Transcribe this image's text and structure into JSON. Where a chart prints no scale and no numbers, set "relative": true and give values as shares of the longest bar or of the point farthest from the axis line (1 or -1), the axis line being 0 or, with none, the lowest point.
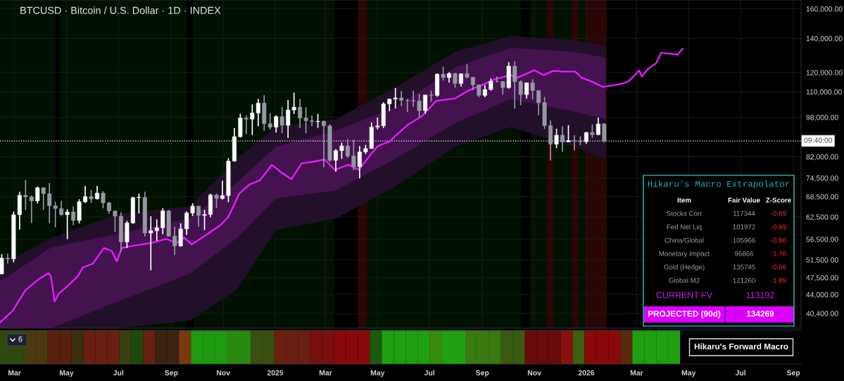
{
  "chart_data": [
    {
      "type": "candlestick",
      "title": "BTCUSD · Bitcoin / U.S. Dollar · 1D · INDEX",
      "x": [
        "2024-02-15",
        "2024-02-22",
        "2024-02-29",
        "2024-03-07",
        "2024-03-14",
        "2024-03-21",
        "2024-03-28",
        "2024-04-04",
        "2024-04-11",
        "2024-04-18",
        "2024-04-25",
        "2024-05-02",
        "2024-05-09",
        "2024-05-16",
        "2024-05-23",
        "2024-05-30",
        "2024-06-06",
        "2024-06-13",
        "2024-06-20",
        "2024-06-27",
        "2024-07-04",
        "2024-07-11",
        "2024-07-18",
        "2024-07-25",
        "2024-08-01",
        "2024-08-08",
        "2024-08-15",
        "2024-08-22",
        "2024-08-29",
        "2024-09-05",
        "2024-09-12",
        "2024-09-19",
        "2024-09-26",
        "2024-10-03",
        "2024-10-10",
        "2024-10-17",
        "2024-10-24",
        "2024-10-31",
        "2024-11-07",
        "2024-11-14",
        "2024-11-21",
        "2024-11-28",
        "2024-12-05",
        "2024-12-12",
        "2024-12-19",
        "2024-12-26",
        "2025-01-02",
        "2025-01-09",
        "2025-01-16",
        "2025-01-23",
        "2025-01-30",
        "2025-02-06",
        "2025-02-13",
        "2025-02-20",
        "2025-02-27",
        "2025-03-06",
        "2025-03-13",
        "2025-03-20",
        "2025-03-27",
        "2025-04-03",
        "2025-04-10",
        "2025-04-17",
        "2025-04-24",
        "2025-05-01",
        "2025-05-08",
        "2025-05-15",
        "2025-05-22",
        "2025-05-29",
        "2025-06-05",
        "2025-06-12",
        "2025-06-19",
        "2025-06-26",
        "2025-07-03",
        "2025-07-10",
        "2025-07-17",
        "2025-07-24",
        "2025-07-31",
        "2025-08-07",
        "2025-08-14",
        "2025-08-21",
        "2025-08-28",
        "2025-09-04",
        "2025-09-11",
        "2025-09-18",
        "2025-09-25",
        "2025-10-02",
        "2025-10-09",
        "2025-10-16",
        "2025-10-23",
        "2025-10-30",
        "2025-11-06",
        "2025-11-13",
        "2025-11-20",
        "2025-11-27",
        "2025-12-04",
        "2025-12-11",
        "2025-12-18",
        "2025-12-25",
        "2026-01-01",
        "2026-01-08",
        "2026-01-15",
        "2026-01-22"
      ],
      "ohlc": [
        [
          48300,
          52800,
          48200,
          51900
        ],
        [
          51900,
          52900,
          50600,
          51700
        ],
        [
          51700,
          64000,
          50900,
          63100
        ],
        [
          63100,
          70000,
          59000,
          68900
        ],
        [
          68900,
          73800,
          64500,
          68400
        ],
        [
          68400,
          68900,
          60800,
          67200
        ],
        [
          67200,
          71700,
          66400,
          71300
        ],
        [
          71300,
          71300,
          64500,
          69400
        ],
        [
          69400,
          72800,
          60700,
          65700
        ],
        [
          65700,
          66900,
          59600,
          64900
        ],
        [
          64900,
          67200,
          62800,
          63100
        ],
        [
          63100,
          64700,
          56500,
          63900
        ],
        [
          63900,
          65500,
          60200,
          61500
        ],
        [
          61500,
          67700,
          60700,
          66900
        ],
        [
          66900,
          71900,
          66600,
          68500
        ],
        [
          68500,
          70600,
          66600,
          67800
        ],
        [
          67800,
          71900,
          67600,
          69600
        ],
        [
          69600,
          70200,
          65000,
          66600
        ],
        [
          66600,
          66900,
          63400,
          64200
        ],
        [
          64200,
          64200,
          58400,
          62700
        ],
        [
          62700,
          63800,
          53500,
          55800
        ],
        [
          55800,
          61400,
          54300,
          60800
        ],
        [
          60800,
          68400,
          60600,
          68200
        ],
        [
          68200,
          69400,
          63500,
          68300
        ],
        [
          68300,
          70000,
          57200,
          58100
        ],
        [
          58100,
          62700,
          49100,
          58700
        ],
        [
          58700,
          61800,
          56100,
          59500
        ],
        [
          59500,
          65000,
          57800,
          64200
        ],
        [
          64200,
          64500,
          57200,
          57300
        ],
        [
          57300,
          59800,
          52600,
          54800
        ],
        [
          54800,
          60700,
          54600,
          59200
        ],
        [
          59200,
          64100,
          57600,
          63600
        ],
        [
          63600,
          66500,
          62700,
          65600
        ],
        [
          65600,
          65600,
          59800,
          62900
        ],
        [
          62900,
          64500,
          58900,
          63200
        ],
        [
          63200,
          69400,
          62400,
          69000
        ],
        [
          69000,
          69500,
          65100,
          67900
        ],
        [
          67900,
          73600,
          67600,
          68800
        ],
        [
          68800,
          81500,
          66800,
          80400
        ],
        [
          80400,
          93400,
          80200,
          89800
        ],
        [
          89800,
          99600,
          89400,
          97700
        ],
        [
          97700,
          98900,
          90800,
          97200
        ],
        [
          97200,
          103900,
          90500,
          99900
        ],
        [
          99900,
          106500,
          94100,
          104500
        ],
        [
          104500,
          108300,
          92200,
          95200
        ],
        [
          95200,
          99900,
          92700,
          93700
        ],
        [
          93700,
          98900,
          91500,
          98300
        ],
        [
          98300,
          102700,
          91200,
          94500
        ],
        [
          94500,
          106000,
          89300,
          101300
        ],
        [
          101300,
          109600,
          99500,
          102600
        ],
        [
          102600,
          106500,
          93400,
          97700
        ],
        [
          97700,
          102500,
          91200,
          96500
        ],
        [
          96500,
          98800,
          94100,
          96100
        ],
        [
          96100,
          99500,
          93400,
          96300
        ],
        [
          96300,
          96500,
          78200,
          94300
        ],
        [
          94300,
          95000,
          80100,
          80700
        ],
        [
          80700,
          84900,
          76600,
          84300
        ],
        [
          84300,
          87400,
          81200,
          86100
        ],
        [
          86100,
          88800,
          81600,
          82300
        ],
        [
          82300,
          88500,
          77100,
          78400
        ],
        [
          78400,
          86100,
          74400,
          83800
        ],
        [
          83800,
          86500,
          83000,
          85100
        ],
        [
          85100,
          95800,
          85100,
          93800
        ],
        [
          93800,
          97900,
          92800,
          94300
        ],
        [
          94300,
          104900,
          93400,
          104100
        ],
        [
          104100,
          106600,
          100700,
          106400
        ],
        [
          106400,
          111900,
          102000,
          107000
        ],
        [
          107000,
          110400,
          103100,
          105800
        ],
        [
          105800,
          106600,
          100400,
          105700
        ],
        [
          105700,
          110500,
          102700,
          105500
        ],
        [
          105500,
          108900,
          98200,
          101000
        ],
        [
          101000,
          108500,
          99600,
          108400
        ],
        [
          108400,
          110600,
          105100,
          108200
        ],
        [
          108200,
          119500,
          107500,
          119100
        ],
        [
          119100,
          123200,
          115700,
          117300
        ],
        [
          117300,
          120200,
          114700,
          119400
        ],
        [
          119400,
          119800,
          112000,
          114200
        ],
        [
          114200,
          119300,
          112600,
          119300
        ],
        [
          119300,
          124500,
          116800,
          117400
        ],
        [
          117400,
          117600,
          110700,
          113500
        ],
        [
          113500,
          113600,
          107300,
          108200
        ],
        [
          108200,
          113400,
          107300,
          111100
        ],
        [
          111100,
          116800,
          110600,
          115300
        ],
        [
          115300,
          117900,
          114700,
          115200
        ],
        [
          115200,
          115400,
          108600,
          112100
        ],
        [
          112100,
          125700,
          111500,
          123500
        ],
        [
          123500,
          126200,
          102000,
          115100
        ],
        [
          115100,
          115900,
          103500,
          108600
        ],
        [
          108600,
          114600,
          106600,
          114500
        ],
        [
          114500,
          116400,
          106300,
          110600
        ],
        [
          110600,
          110600,
          98900,
          104700
        ],
        [
          104700,
          107500,
          93000,
          94400
        ],
        [
          94400,
          96600,
          80600,
          86800
        ],
        [
          86800,
          93100,
          85300,
          90400
        ],
        [
          90400,
          94100,
          83900,
          87700
        ],
        [
          87700,
          94600,
          87600,
          88200
        ],
        [
          88200,
          90400,
          84400,
          88100
        ],
        [
          88100,
          89900,
          86500,
          87800
        ],
        [
          87800,
          91800,
          86900,
          91500
        ],
        [
          91500,
          94800,
          89300,
          90600
        ],
        [
          90600,
          97900,
          90500,
          95100
        ],
        [
          95100,
          95500,
          87300,
          88100
        ]
      ],
      "colors": [
        "#ffffff",
        "#9598a1",
        "#ffffff",
        "#ffffff",
        "#9598a1",
        "#9598a1",
        "#ffffff",
        "#9598a1",
        "#9598a1",
        "#9598a1",
        "#9598a1",
        "#ffffff",
        "#9598a1",
        "#ffffff",
        "#ffffff",
        "#9598a1",
        "#ffffff",
        "#9598a1",
        "#9598a1",
        "#9598a1",
        "#9598a1",
        "#ffffff",
        "#ffffff",
        "#ffffff",
        "#9598a1",
        "#ffffff",
        "#ffffff",
        "#ffffff",
        "#9598a1",
        "#9598a1",
        "#ffffff",
        "#ffffff",
        "#ffffff",
        "#9598a1",
        "#ffffff",
        "#ffffff",
        "#9598a1",
        "#ffffff",
        "#ffffff",
        "#ffffff",
        "#ffffff",
        "#9598a1",
        "#ffffff",
        "#ffffff",
        "#9598a1",
        "#9598a1",
        "#ffffff",
        "#9598a1",
        "#ffffff",
        "#ffffff",
        "#9598a1",
        "#9598a1",
        "#9598a1",
        "#ffffff",
        "#9598a1",
        "#9598a1",
        "#ffffff",
        "#ffffff",
        "#9598a1",
        "#9598a1",
        "#ffffff",
        "#ffffff",
        "#ffffff",
        "#ffffff",
        "#ffffff",
        "#ffffff",
        "#ffffff",
        "#9598a1",
        "#9598a1",
        "#9598a1",
        "#9598a1",
        "#ffffff",
        "#9598a1",
        "#ffffff",
        "#9598a1",
        "#ffffff",
        "#9598a1",
        "#ffffff",
        "#9598a1",
        "#9598a1",
        "#9598a1",
        "#ffffff",
        "#ffffff",
        "#9598a1",
        "#9598a1",
        "#ffffff",
        "#9598a1",
        "#9598a1",
        "#ffffff",
        "#9598a1",
        "#9598a1",
        "#9598a1",
        "#9598a1",
        "#ffffff",
        "#9598a1",
        "#ffffff",
        "#9598a1",
        "#9598a1",
        "#ffffff",
        "#9598a1",
        "#ffffff",
        "#9598a1"
      ],
      "series": [
        {
          "type": "line",
          "color": "#22102a",
          "x": [
            "2024-02-13",
            "2024-04-13",
            "2024-07-01",
            "2024-09-23",
            "2024-11-17",
            "2025-01-02",
            "2025-03-13",
            "2025-05-22",
            "2025-07-31",
            "2025-10-04",
            "2025-12-17",
            "2026-01-24"
          ],
          "values": [
            null,
            null,
            null,
            null,
            null,
            null,
            null,
            null,
            null,
            null,
            null,
            null
          ],
          "lower": [
            37800,
            37800,
            37800,
            39100,
            45000,
            58900,
            62100,
            71700,
            85800,
            93800,
            85800,
            81300
          ],
          "upper": [
            50200,
            56800,
            63300,
            65600,
            81300,
            93800,
            97200,
            112200,
            131800,
            141500,
            139000,
            135300
          ]
        },
        {
          "type": "line",
          "color": "#44124f",
          "x": [
            "2024-02-13",
            "2024-04-13",
            "2024-07-01",
            "2024-09-23",
            "2024-11-17",
            "2025-01-02",
            "2025-03-13",
            "2025-05-22",
            "2025-07-31",
            "2025-10-04",
            "2025-12-17",
            "2026-01-24"
          ],
          "values": [
            null,
            null,
            null,
            null,
            null,
            null,
            null,
            null,
            null,
            null,
            null,
            null
          ],
          "lower": [
            37800,
            37800,
            42700,
            48400,
            56800,
            68000,
            70400,
            81300,
            95500,
            106300,
            100700,
            97200
          ],
          "upper": [
            46700,
            54400,
            57900,
            62100,
            73000,
            85800,
            92200,
            102600,
            122700,
            134100,
            131800,
            128300
          ]
        },
        {
          "type": "line",
          "color": "#e51cff",
          "x": [
            "2024-02-13",
            "2024-02-28",
            "2024-03-14",
            "2024-03-29",
            "2024-04-10",
            "2024-04-13",
            "2024-04-17",
            "2024-04-22",
            "2024-05-02",
            "2024-05-14",
            "2024-05-20",
            "2024-06-01",
            "2024-06-14",
            "2024-06-23",
            "2024-06-29",
            "2024-07-05",
            "2024-07-20",
            "2024-08-08",
            "2024-08-26",
            "2024-09-07",
            "2024-09-16",
            "2024-09-25",
            "2024-10-14",
            "2024-10-29",
            "2024-11-07",
            "2024-11-20",
            "2024-12-02",
            "2024-12-14",
            "2024-12-28",
            "2025-01-08",
            "2025-01-20",
            "2025-02-01",
            "2025-02-13",
            "2025-02-28",
            "2025-03-12",
            "2025-03-28",
            "2025-04-09",
            "2025-04-21",
            "2025-05-01",
            "2025-05-16",
            "2025-05-20",
            "2025-06-06",
            "2025-06-22",
            "2025-07-09",
            "2025-07-31",
            "2025-08-16",
            "2025-09-02",
            "2025-09-18",
            "2025-10-05",
            "2025-10-10",
            "2025-11-01",
            "2025-11-12",
            "2025-11-23",
            "2025-12-04",
            "2025-12-19",
            "2025-12-26",
            "2026-01-09",
            "2026-01-20",
            "2026-01-25",
            "2026-02-08",
            "2026-02-19",
            "2026-02-27",
            "2026-03-04",
            "2026-03-07",
            "2026-03-14",
            "2026-03-24",
            "2026-03-30",
            "2026-04-10",
            "2026-04-18",
            "2026-04-24"
          ],
          "values": [
            38800,
            40900,
            44900,
            47100,
            48500,
            47700,
            42600,
            44200,
            45700,
            47700,
            49700,
            50600,
            54300,
            53600,
            51100,
            54300,
            54900,
            55500,
            56600,
            55500,
            56900,
            55200,
            57900,
            60300,
            62500,
            69500,
            72400,
            73700,
            79100,
            76400,
            74100,
            79600,
            80100,
            81000,
            77300,
            79100,
            77300,
            82000,
            86000,
            88000,
            89500,
            94900,
            98500,
            105600,
            106700,
            110700,
            113700,
            116800,
            118600,
            116800,
            121200,
            118600,
            120900,
            120500,
            120500,
            117400,
            114900,
            112500,
            112700,
            113700,
            115100,
            118600,
            121200,
            117800,
            121800,
            125100,
            131200,
            130600,
            130000,
            133600
          ]
        }
      ],
      "log": true,
      "xlim": [
        "2024-02-13",
        "2026-09-10"
      ],
      "xticks": [
        {
          "value": "2024-03-01",
          "label": null
        },
        {
          "value": "2024-05-01",
          "label": null
        },
        {
          "value": "2024-07-01",
          "label": null
        },
        {
          "value": "2024-09-01",
          "label": null
        },
        {
          "value": "2024-11-01",
          "label": null
        },
        {
          "value": "2025-01-01",
          "label": null
        },
        {
          "value": "2025-03-01",
          "label": null
        },
        {
          "value": "2025-05-01",
          "label": null
        },
        {
          "value": "2025-07-01",
          "label": null
        },
        {
          "value": "2025-09-01",
          "label": null
        },
        {
          "value": "2025-11-01",
          "label": null
        },
        {
          "value": "2026-01-01",
          "label": null
        },
        {
          "value": "2026-03-01",
          "label": null
        },
        {
          "value": "2026-05-01",
          "label": null
        },
        {
          "value": "2026-07-01",
          "label": null
        },
        {
          "value": "2026-09-01",
          "label": null
        }
      ],
      "ylim": [
        37800,
        166500
      ],
      "yticks": [
        {
          "value": 160000,
          "label": "160,000.00"
        },
        {
          "value": 140000,
          "label": "140,000.00"
        },
        {
          "value": 120000,
          "label": "120,000.00"
        },
        {
          "value": 110000,
          "label": "110,000.00"
        },
        {
          "value": 98000,
          "label": "98,000.00"
        },
        {
          "value": 82000,
          "label": "82,000.00"
        },
        {
          "value": 74500,
          "label": "74,500.00"
        },
        {
          "value": 68500,
          "label": "68,500.00"
        },
        {
          "value": 62500,
          "label": "62,500.00"
        },
        {
          "value": 56500,
          "label": "56,500.00"
        },
        {
          "value": 51500,
          "label": "51,500.00"
        },
        {
          "value": 47500,
          "label": "47,500.00"
        },
        {
          "value": 44000,
          "label": "44,000.00"
        },
        {
          "value": 40400,
          "label": "40,400.00"
        }
      ],
      "tick_labels": "y",
      "grid": true,
      "bands": [
        {
          "axis": "x",
          "from": "2024-02-13",
          "to": "2026-01-25",
          "color": "#031103"
        },
        {
          "axis": "x",
          "from": "2024-04-18",
          "to": "2024-04-24",
          "color": "#000000"
        },
        {
          "axis": "x",
          "from": "2024-09-19",
          "to": "2024-09-27",
          "color": "#000000"
        },
        {
          "axis": "x",
          "from": "2025-03-11",
          "to": "2025-04-08",
          "color": "#000000"
        },
        {
          "axis": "x",
          "from": "2025-04-08",
          "to": "2025-04-19",
          "color": "#2a0606"
        },
        {
          "axis": "x",
          "from": "2025-10-16",
          "to": "2025-10-27",
          "color": "#000000"
        },
        {
          "axis": "x",
          "from": "2025-11-16",
          "to": "2025-11-24",
          "color": "#2a0606"
        },
        {
          "axis": "x",
          "from": "2025-12-15",
          "to": "2025-12-23",
          "color": "#2a0606"
        },
        {
          "axis": "x",
          "from": "2025-12-31",
          "to": "2026-01-25",
          "color": "#2a0606"
        }
      ],
      "ref_lines": [
        {
          "axis": "y",
          "value": 88100,
          "line_style": "dotted",
          "color": "#ffffff"
        }
      ],
      "annotations": [
        "09:40:00"
      ]
    },
    {
      "type": "bar",
      "title": "Hikaru's Forward Macro",
      "relative": true,
      "x": [
        "2024-02-20",
        "2024-03-05",
        "2024-03-19",
        "2024-04-02",
        "2024-04-16",
        "2024-04-30",
        "2024-05-14",
        "2024-05-28",
        "2024-06-11",
        "2024-06-25",
        "2024-07-09",
        "2024-07-23",
        "2024-08-06",
        "2024-08-20",
        "2024-09-03",
        "2024-09-17",
        "2024-10-01",
        "2024-10-15",
        "2024-10-29",
        "2024-11-12",
        "2024-11-26",
        "2024-12-10",
        "2024-12-24",
        "2025-01-07",
        "2025-01-21",
        "2025-02-04",
        "2025-02-18",
        "2025-03-04",
        "2025-03-18",
        "2025-04-01",
        "2025-04-15",
        "2025-04-29",
        "2025-05-13",
        "2025-05-27",
        "2025-06-10",
        "2025-06-24",
        "2025-07-08",
        "2025-07-22",
        "2025-08-05",
        "2025-08-19",
        "2025-09-02",
        "2025-09-16",
        "2025-09-30",
        "2025-10-14",
        "2025-10-28",
        "2025-11-11",
        "2025-11-25",
        "2025-12-09",
        "2025-12-23",
        "2026-01-06",
        "2026-01-20",
        "2026-02-03",
        "2026-02-17",
        "2026-03-03",
        "2026-03-17",
        "2026-03-31",
        "2026-04-14"
      ],
      "values": [
        1,
        1,
        1,
        1,
        1,
        1,
        1,
        1,
        1,
        1,
        1,
        1,
        1,
        1,
        1,
        1,
        1,
        1,
        1,
        1,
        1,
        1,
        1,
        1,
        1,
        1,
        1,
        1,
        1,
        1,
        1,
        1,
        1,
        1,
        1,
        1,
        1,
        1,
        1,
        1,
        1,
        1,
        1,
        1,
        1,
        1,
        1,
        1,
        1,
        1,
        1,
        1,
        1,
        1,
        1,
        1,
        1
      ],
      "colors": [
        "#2e4a10",
        "#2e4a10",
        "#4a3a10",
        "#4a3a10",
        "#5a2010",
        "#5a2010",
        "#3a3010",
        "#6a2010",
        "#6a2010",
        "#6a2010",
        "#3a4010",
        "#1f4a0e",
        "#6a2010",
        "#3a2410",
        "#3a2410",
        "#7a3a10",
        "#1f9a10",
        "#1f9a10",
        "#1f9a10",
        "#2a8a10",
        "#2a8a10",
        "#3a5010",
        "#3a5010",
        "#6a2010",
        "#6a2010",
        "#6a2010",
        "#7a1010",
        "#7a1010",
        "#8a0a0a",
        "#8a0a0a",
        "#8a0a0a",
        "#1a5a0c",
        "#20a010",
        "#20a010",
        "#20a010",
        "#20a010",
        "#3a8a10",
        "#20a010",
        "#20a010",
        "#3a7a10",
        "#3a7a10",
        "#3a7a10",
        "#3a5a10",
        "#3a5a10",
        "#6a0a0a",
        "#6a0a0a",
        "#6a0a0a",
        "#8a1010",
        "#3a6010",
        "#8a0a0a",
        "#8a0a0a",
        "#8a0a0a",
        "#5a2a0a",
        "#20a010",
        "#20a010",
        "#20a010",
        "#20a010"
      ],
      "xlim": [
        "2024-02-13",
        "2026-09-10"
      ],
      "xticks": [
        {
          "value": "2024-03-01",
          "label": "Mar"
        },
        {
          "value": "2024-05-01",
          "label": "May"
        },
        {
          "value": "2024-07-01",
          "label": "Jul"
        },
        {
          "value": "2024-09-01",
          "label": "Sep"
        },
        {
          "value": "2024-11-01",
          "label": "Nov"
        },
        {
          "value": "2025-01-01",
          "label": "2025"
        },
        {
          "value": "2025-03-01",
          "label": "Mar"
        },
        {
          "value": "2025-05-01",
          "label": "May"
        },
        {
          "value": "2025-07-01",
          "label": "Jul"
        },
        {
          "value": "2025-09-01",
          "label": "Sep"
        },
        {
          "value": "2025-11-01",
          "label": "Nov"
        },
        {
          "value": "2026-01-01",
          "label": "2026"
        },
        {
          "value": "2026-03-01",
          "label": "Mar"
        },
        {
          "value": "2026-05-01",
          "label": "May"
        },
        {
          "value": "2026-07-01",
          "label": "Jul"
        },
        {
          "value": "2026-09-01",
          "label": "Sep"
        }
      ],
      "annotations": [
        "6"
      ]
    },
    {
      "type": "other",
      "title": "Hikaru's Macro Extrapolator",
      "categories": [
        "Stocks Corr",
        "Fed Net Liq",
        "China/Global",
        "Monetary Impact",
        "Gold (Hedge)",
        "Global M2"
      ],
      "series": [
        {
          "name": "Fair Value",
          "values": [
            117344,
            101972,
            105966,
            96866,
            135745,
            121260
          ]
        },
        {
          "name": "Z-Score",
          "values": [
            -0.69,
            -0.89,
            -0.86,
            -1.76,
            -0.66,
            -1.89
          ]
        }
      ],
      "data_labels": true,
      "annotations": [
        "Item",
        "CURRENT FV",
        "113192",
        "PROJECTED (90d)",
        "134269"
      ]
    }
  ]
}
